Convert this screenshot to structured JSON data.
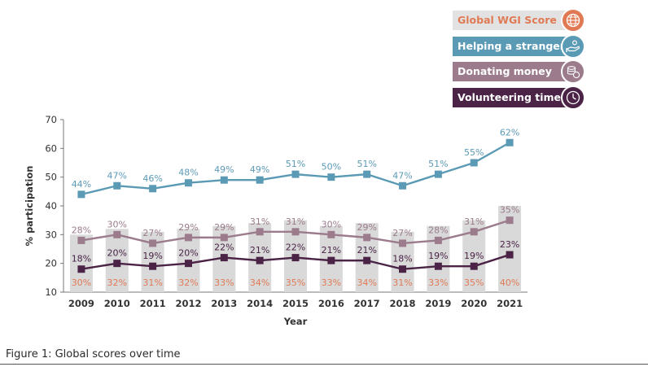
{
  "chart_data": {
    "type": "line",
    "categories": [
      "2009",
      "2010",
      "2011",
      "2012",
      "2013",
      "2014",
      "2015",
      "2016",
      "2017",
      "2018",
      "2019",
      "2020",
      "2021"
    ],
    "xlabel": "Year",
    "ylabel": "% participation",
    "ylim": [
      10,
      70
    ],
    "yticks": [
      10,
      20,
      30,
      40,
      50,
      60,
      70
    ],
    "grid": false,
    "legend_position": "top-right",
    "series": [
      {
        "name": "Global WGI Score",
        "kind": "bar",
        "color": "#e07a55",
        "bar_color": "#d9d9d9",
        "values": [
          30,
          32,
          31,
          32,
          33,
          34,
          35,
          33,
          34,
          31,
          33,
          35,
          40
        ],
        "labels": [
          "30%",
          "32%",
          "31%",
          "32%",
          "33%",
          "34%",
          "35%",
          "33%",
          "34%",
          "31%",
          "33%",
          "35%",
          "40%"
        ]
      },
      {
        "name": "Helping a stranger",
        "kind": "line",
        "color": "#5b9ab5",
        "values": [
          44,
          47,
          46,
          48,
          49,
          49,
          51,
          50,
          51,
          47,
          51,
          55,
          62
        ],
        "labels": [
          "44%",
          "47%",
          "46%",
          "48%",
          "49%",
          "49%",
          "51%",
          "50%",
          "51%",
          "47%",
          "51%",
          "55%",
          "62%"
        ]
      },
      {
        "name": "Donating money",
        "kind": "line",
        "color": "#9b7b8c",
        "values": [
          28,
          30,
          27,
          29,
          29,
          31,
          31,
          30,
          29,
          27,
          28,
          31,
          35
        ],
        "labels": [
          "28%",
          "30%",
          "27%",
          "29%",
          "29%",
          "31%",
          "31%",
          "30%",
          "29%",
          "27%",
          "28%",
          "31%",
          "35%"
        ]
      },
      {
        "name": "Volunteering time",
        "kind": "line",
        "color": "#4a2346",
        "values": [
          18,
          20,
          19,
          20,
          22,
          21,
          22,
          21,
          21,
          18,
          19,
          19,
          23
        ],
        "labels": [
          "18%",
          "20%",
          "19%",
          "20%",
          "22%",
          "21%",
          "22%",
          "21%",
          "21%",
          "18%",
          "19%",
          "19%",
          "23%"
        ]
      }
    ]
  },
  "legend": {
    "items": [
      {
        "label": "Global WGI Score",
        "bar_color": "#e2e2e2",
        "text_color": "#e07a55",
        "icon_color": "#e07a55",
        "icon": "globe-icon"
      },
      {
        "label": "Helping a stranger",
        "bar_color": "#5b9ab5",
        "text_color": "#ffffff",
        "icon_color": "#5b9ab5",
        "icon": "helping-hand-icon"
      },
      {
        "label": "Donating money",
        "bar_color": "#9b7b8c",
        "text_color": "#ffffff",
        "icon_color": "#9b7b8c",
        "icon": "coins-icon"
      },
      {
        "label": "Volunteering time",
        "bar_color": "#4a2346",
        "text_color": "#ffffff",
        "icon_color": "#4a2346",
        "icon": "clock-icon"
      }
    ]
  },
  "caption": "Figure 1: Global scores over time"
}
